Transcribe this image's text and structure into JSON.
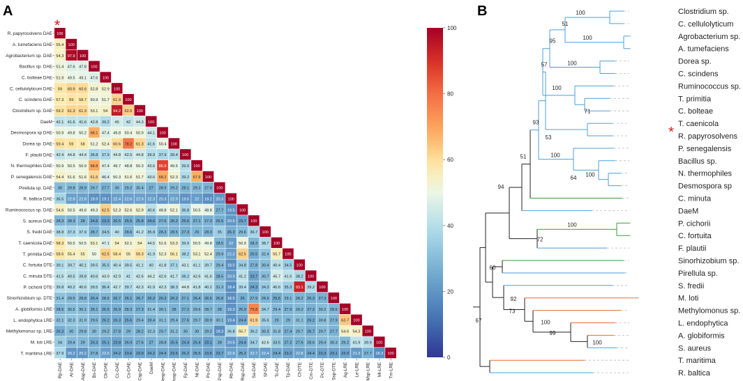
{
  "panel_a": {
    "label": "A",
    "star": "*",
    "row_labels": [
      "R. papyrosolvens  DAE",
      "A. tumefaciens DAE",
      "Agrobacterium sp. DAE",
      "Bacillus sp. DAE",
      "C. bolteae DAE",
      "C. cellulolyticum DAE",
      "C. scindens DAE",
      "Clostridium sp. DAE",
      "DaeM",
      "Desmospora sp DAE",
      "Dorea sp. DAE",
      "F. plautii DAE",
      "N. thermophiles DAE",
      "P. senegalensis DAE",
      "Pirellula sp. DAE",
      "R. baltica DAE",
      "Ruminococcus sp. DAE",
      "S. aureus DAE",
      "S. fredii DAE",
      "T. caenicola DAE",
      "T. primitia DAE",
      "C. fortuita DTE",
      "C. minuta DTE",
      "P. cichorii DTE",
      "Sinorhizobium sp. DTE",
      "A. globiformis LRE",
      "L. endophytica LRE",
      "Methylomonus sp. LRE",
      "M. loti LRE",
      "T. maritima LRE"
    ],
    "col_labels": [
      "Rp-DAE",
      "At-DAE",
      "Asp-DAE",
      "Bs-DAE",
      "Cb-DAE",
      "Cc-DAE",
      "Cs-DAE",
      "Csp-DAE",
      "DaeM",
      "Desp-DAE",
      "Dosp-DAE",
      "Fp-DAE",
      "Nt-DAE",
      "Ps-DAE",
      "Psp-DAE",
      "Rb-DAE",
      "Rsp-DAE",
      "Sa-DAE",
      "Sf-DAE",
      "Tc-DAE",
      "Tp-DAE",
      "Cf-DTE",
      "Cm-DTE",
      "Pc-DTE",
      "Ssp-DTE",
      "Ag-LRE",
      "Le-LRE",
      "Msp-LRE",
      "Ml-LRE",
      "Tm-LRE"
    ],
    "matrix": [
      [
        100
      ],
      [
        55.4,
        100
      ],
      [
        54.3,
        97.9,
        100
      ],
      [
        51.4,
        47.6,
        47.8,
        100
      ],
      [
        51.9,
        49.5,
        49.1,
        47.6,
        100
      ],
      [
        59,
        60.9,
        60.6,
        52.8,
        52.9,
        100
      ],
      [
        57.3,
        59,
        58.7,
        50.9,
        51.7,
        61.9,
        100
      ],
      [
        59.2,
        61.3,
        61.3,
        53.1,
        54,
        94.2,
        62.6,
        100
      ],
      [
        42.1,
        41.6,
        41.6,
        42.8,
        39.2,
        45,
        42,
        44.3,
        100
      ],
      [
        50.9,
        49.8,
        50.2,
        68.1,
        47.4,
        49.8,
        50.4,
        50.9,
        44.1,
        100
      ],
      [
        59.4,
        59,
        58,
        51.2,
        52.4,
        60.6,
        78.2,
        61.3,
        41.6,
        50.4,
        100
      ],
      [
        42.4,
        44.8,
        44.4,
        36.8,
        37.9,
        44.8,
        42.5,
        44.8,
        39.9,
        37.9,
        39.4,
        100
      ],
      [
        50.9,
        50.5,
        50.9,
        68.8,
        47.4,
        49.7,
        48.8,
        50.3,
        43.6,
        86.9,
        49.5,
        39.9,
        100
      ],
      [
        54.4,
        51.6,
        51.6,
        61.5,
        46.4,
        50.3,
        51.6,
        51.7,
        43.6,
        68.2,
        52.3,
        39.2,
        67.9,
        100
      ],
      [
        30,
        29.8,
        28.9,
        29.7,
        27.7,
        30,
        29.2,
        30.4,
        27,
        28.9,
        29.2,
        28.1,
        29.1,
        27.9,
        100
      ],
      [
        36.5,
        22.8,
        22.8,
        18.9,
        19.1,
        22.4,
        22.6,
        22.9,
        22.3,
        20.3,
        22.9,
        19.5,
        22,
        18.2,
        20.3,
        100
      ],
      [
        54.6,
        50.5,
        49.8,
        49.3,
        62.5,
        52.3,
        52.6,
        52.9,
        40.6,
        48.8,
        52.1,
        36.8,
        50.5,
        48.8,
        27.7,
        19.5,
        100
      ],
      [
        28.3,
        28.3,
        28,
        24.6,
        23.3,
        26.5,
        25.5,
        25.8,
        24.6,
        27.6,
        26.2,
        25.6,
        27.1,
        27.3,
        26.5,
        20.5,
        23.7,
        100
      ],
      [
        38.8,
        37.3,
        37.9,
        28.7,
        34.5,
        40,
        28.6,
        41.2,
        35.9,
        28.3,
        28.5,
        27.3,
        29,
        28.3,
        35,
        26.3,
        29.6,
        36.7,
        100
      ],
      [
        58.3,
        50.5,
        50.5,
        53.1,
        47.1,
        54,
        52.1,
        54,
        44.5,
        51.6,
        53.3,
        39.9,
        50.5,
        49.8,
        28.5,
        22,
        50.9,
        28.3,
        38.7,
        100
      ],
      [
        58.6,
        55.4,
        55,
        50,
        62.5,
        58.4,
        55,
        59.3,
        41.9,
        52.3,
        56.1,
        38.2,
        53.1,
        52.4,
        29.9,
        22.2,
        62.5,
        26.5,
        32.4,
        55.7,
        100
      ],
      [
        39.1,
        39.7,
        40.1,
        39.5,
        35.5,
        40.4,
        39.5,
        41.1,
        40,
        41.8,
        37.1,
        43.1,
        41.1,
        39.7,
        29.4,
        18.5,
        34.8,
        27.8,
        30.4,
        40.4,
        34.5,
        100
      ],
      [
        41.5,
        40.5,
        39.8,
        40.6,
        43.9,
        42.9,
        41,
        42.6,
        44.2,
        42.6,
        41.7,
        38.2,
        42.6,
        41.6,
        28.5,
        20.9,
        41.2,
        23.7,
        30.7,
        45.7,
        41.5,
        38.2,
        100
      ],
      [
        39.8,
        40.2,
        40.6,
        39.5,
        36.4,
        42.7,
        39.7,
        42.3,
        41.9,
        42.3,
        38.3,
        44.8,
        41.8,
        40.2,
        31.3,
        18.4,
        39.4,
        24.3,
        34.3,
        40.6,
        35.3,
        93.1,
        39.2,
        100
      ],
      [
        31.4,
        29.5,
        28.8,
        26.4,
        28.5,
        26.7,
        26.1,
        26.7,
        26.2,
        26.3,
        26.2,
        27.1,
        26.4,
        26.6,
        26.8,
        18.5,
        26,
        27.9,
        28.9,
        25.6,
        29.1,
        28.2,
        26.3,
        27.3,
        100
      ],
      [
        28.6,
        30.5,
        30.1,
        28.1,
        26.5,
        26.9,
        28.3,
        27.3,
        31.4,
        30.1,
        28,
        27.2,
        29.6,
        28.7,
        28,
        19.3,
        26.9,
        75.8,
        34.7,
        29.4,
        27.9,
        29.2,
        27.2,
        30.2,
        28.6,
        100
      ],
      [
        32.1,
        32.3,
        31.9,
        29.5,
        26.2,
        26.3,
        25.6,
        29.4,
        28.4,
        31.1,
        29.4,
        27.6,
        29.7,
        28.9,
        30.1,
        19.4,
        24.4,
        61.9,
        35.6,
        29,
        29,
        31.1,
        26.2,
        30.8,
        27.9,
        63.7,
        100
      ],
      [
        26.3,
        30,
        29.8,
        30,
        29.2,
        27.8,
        29,
        28.2,
        32.3,
        29.7,
        31.2,
        30,
        30,
        29.2,
        18.3,
        36.8,
        55.7,
        36.2,
        30.3,
        31.8,
        27.4,
        29.7,
        26.7,
        29.7,
        27.7,
        54.6,
        54.3,
        100
      ],
      [
        34,
        29.4,
        29,
        26.3,
        25.1,
        23.8,
        26.9,
        27.6,
        27,
        28.8,
        25.5,
        24.4,
        25.4,
        23.1,
        28,
        20.5,
        24.4,
        34.7,
        42.6,
        33.5,
        27.2,
        27.6,
        28.6,
        29.4,
        30.3,
        29.2,
        41.9,
        39.9,
        100
      ],
      [
        37.9,
        20.2,
        20.2,
        27.8,
        22.5,
        24.2,
        23.6,
        23.9,
        24.2,
        24.4,
        23.6,
        25.2,
        25.5,
        23.5,
        23.7,
        22.9,
        25.2,
        22.7,
        22.4,
        24.4,
        23.2,
        22.8,
        24.4,
        23.3,
        23.1,
        23.9,
        21.3,
        27.7,
        18.3,
        100
      ]
    ],
    "colorbar_ticks": [
      "100",
      "80",
      "60",
      "40",
      "20",
      "0"
    ]
  },
  "panel_b": {
    "label": "B",
    "star": "*",
    "leaves": [
      "Clostridium sp.",
      "C. cellulolyticum",
      "Agrobacterium sp.",
      "A. tumefaciens",
      "Dorea sp.",
      "C. scindens",
      "Ruminococcus sp.",
      "T. primitia",
      "C. bolteae",
      "T. caenicola",
      "R. papyrosolvens",
      "P. senegalensis",
      "Bacillus sp.",
      "N. thermophiles",
      "Desmospora sp",
      "C. minuta",
      "DaeM",
      "P. cichorii",
      "C. fortuita",
      "F. plautii",
      "Sinorhizobium sp.",
      "Pirellula sp.",
      "S. fredii",
      "M. loti",
      "Methylomonus sp.",
      "L. endophytica",
      "A. globiformis",
      "S. aureus",
      "T. maritima",
      "R. baltica"
    ],
    "bootstrap": [
      "100",
      "51",
      "100",
      "95",
      "100",
      "100",
      "57",
      "71",
      "93",
      "53",
      "100",
      "64",
      "100",
      "51",
      "94",
      "100",
      "72",
      "60",
      "92",
      "73",
      "100",
      "99",
      "100",
      "67"
    ],
    "colors": {
      "blue": "#4a9fd8",
      "green": "#3a9a3a",
      "orange": "#e86a2a",
      "black": "#222222",
      "dash": "#b8b8b8",
      "star": "#d11b1b"
    }
  }
}
